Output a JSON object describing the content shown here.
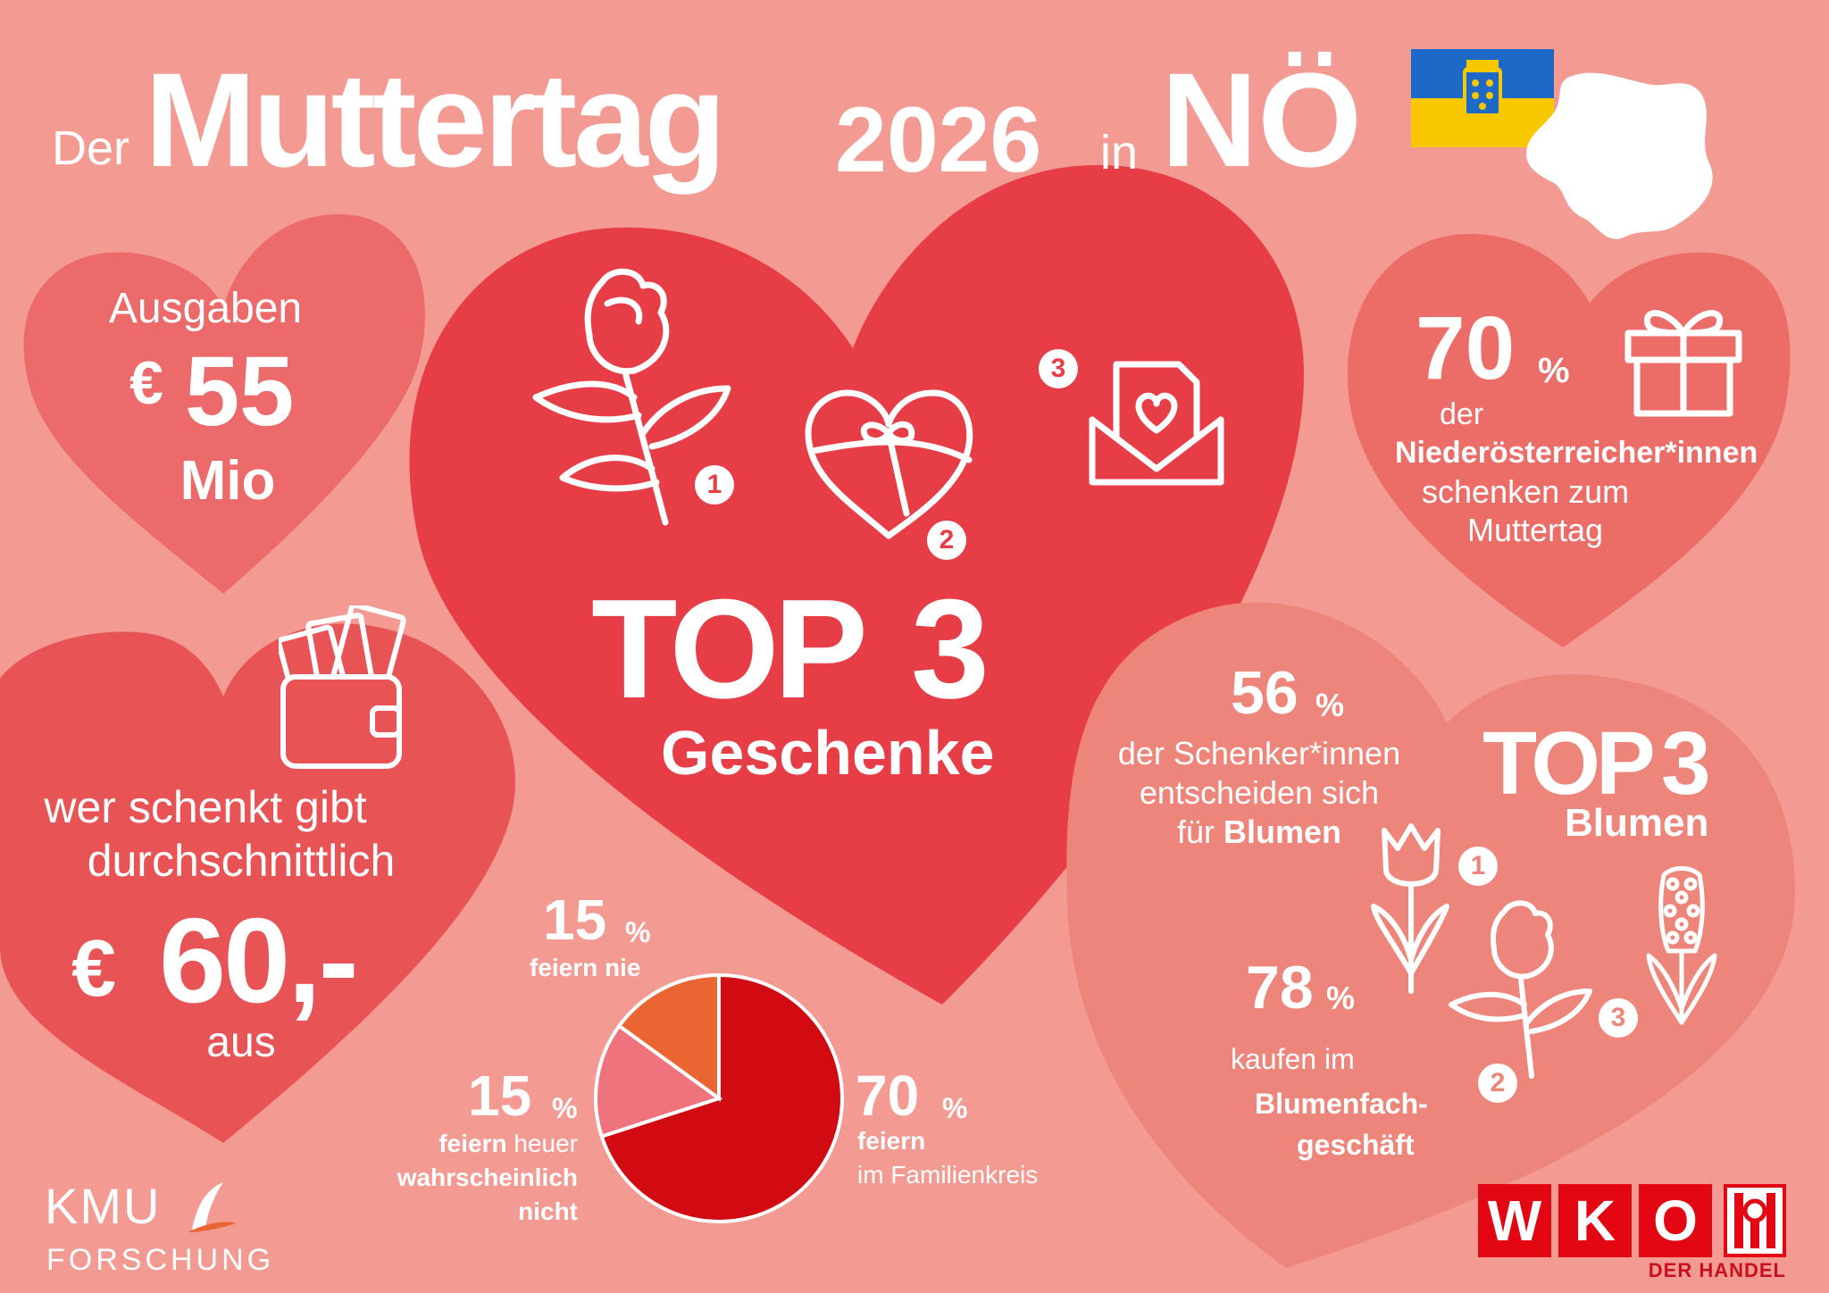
{
  "title": {
    "der": "Der",
    "muttertag": "Muttertag",
    "year": "2026",
    "in": "in",
    "region": "NÖ"
  },
  "colors": {
    "background": "#f39a93",
    "heart_dark": "#e63d46",
    "heart_mid": "#ec6a6a",
    "heart_light": "#ee8a80",
    "pie_red": "#d20a12",
    "pie_orange": "#ea6531",
    "pie_pink": "#ee737c",
    "flag_blue": "#1e68c8",
    "flag_yellow": "#f7c800"
  },
  "spending": {
    "label": "Ausgaben",
    "currency": "€",
    "value": "55",
    "unit": "Mio"
  },
  "average": {
    "line1": "wer schenkt gibt",
    "line2": "durchschnittlich",
    "currency": "€",
    "value": "60,-",
    "suffix": "aus"
  },
  "top_gifts": {
    "top": "TOP",
    "number": "3",
    "label": "Geschenke",
    "ranks": [
      "1",
      "2",
      "3"
    ],
    "icons": [
      "rose-icon",
      "heart-box-icon",
      "love-letter-icon"
    ]
  },
  "givers": {
    "value": "70",
    "unit": "%",
    "line1": "der",
    "line2": "Niederösterreicher*innen",
    "line3": "schenken zum",
    "line4": "Muttertag"
  },
  "flowers": {
    "value": "56",
    "unit": "%",
    "line1": "der Schenker*innen",
    "line2": "entscheiden sich",
    "line3_pre": "für",
    "line3_bold": "Blumen",
    "top": "TOP",
    "number": "3",
    "label": "Blumen",
    "ranks": [
      "1",
      "2",
      "3"
    ],
    "icons": [
      "tulip-icon",
      "rose-icon",
      "hyacinth-icon"
    ]
  },
  "florist": {
    "value": "78",
    "unit": "%",
    "line1": "kaufen im",
    "line2": "Blumenfach-",
    "line3": "geschäft"
  },
  "celebration": {
    "never": {
      "value": "15",
      "unit": "%",
      "label": "feiern nie"
    },
    "probably_not": {
      "value": "15",
      "unit": "%",
      "label_bold1": "feiern",
      "label_norm": "heuer",
      "label_bold2": "wahrscheinlich",
      "label_bold3": "nicht"
    },
    "family": {
      "value": "70",
      "unit": "%",
      "label_bold": "feiern",
      "label_norm": "im Familienkreis"
    }
  },
  "chart_data": {
    "type": "pie",
    "categories": [
      "feiern im Familienkreis",
      "feiern heuer wahrscheinlich nicht",
      "feiern nie"
    ],
    "values": [
      70,
      15,
      15
    ],
    "colors": [
      "#d20a12",
      "#ee737c",
      "#ea6531"
    ]
  },
  "logos": {
    "kmu_line1": "KMU",
    "kmu_line2": "FORSCHUNG",
    "wko_letters": [
      "W",
      "K",
      "O"
    ],
    "wko_sub": "DER HANDEL"
  }
}
